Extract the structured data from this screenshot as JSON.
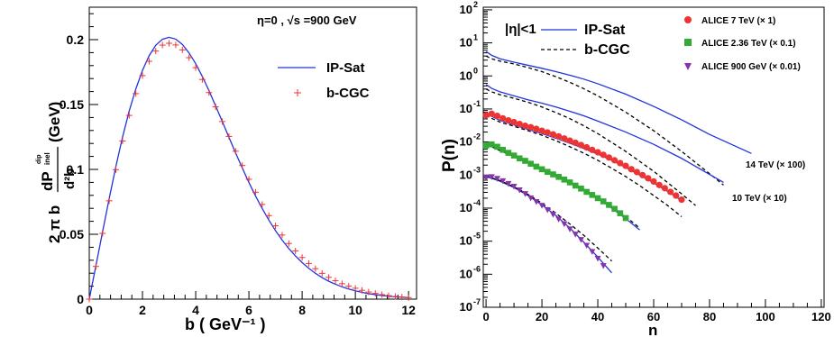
{
  "figure": {
    "left_panel": {
      "header": "η=0 , √s =900 GeV",
      "ylabel_prefix": "2 π b",
      "ylabel_numerator": "dP",
      "ylabel_superscript": "inel",
      "ylabel_superscript2": "dip",
      "ylabel_denominator": "d²b",
      "ylabel_unit": "(GeV)",
      "xlabel": "b ( GeV⁻¹ )",
      "legend": [
        {
          "label": "IP-Sat",
          "style": "line",
          "color": "#2233dd"
        },
        {
          "label": "b-CGC",
          "style": "cross",
          "color": "#ee3333"
        }
      ]
    },
    "right_panel": {
      "header": "|η|<1",
      "xlabel": "n",
      "ylabel": "P(n)",
      "legend_models": [
        {
          "label": "IP-Sat",
          "style": "line",
          "color": "#2233dd"
        },
        {
          "label": "b-CGC",
          "style": "dashed",
          "color": "#000000"
        }
      ],
      "legend_data": [
        {
          "label": "ALICE 7 TeV (× 1)",
          "marker": "circle",
          "color": "#ee3333"
        },
        {
          "label": "ALICE 2.36 TeV (× 0.1)",
          "marker": "square",
          "color": "#33aa33"
        },
        {
          "label": "ALICE 900 GeV (× 0.01)",
          "marker": "triangle-down",
          "color": "#8833aa"
        }
      ],
      "curve_labels": [
        "14 TeV (× 100)",
        "10 TeV (× 10)"
      ]
    }
  },
  "chart_data": [
    {
      "type": "line",
      "xlabel": "b ( GeV⁻¹ )",
      "ylabel": "2 π b dP_inel^dip / d²b (GeV)",
      "xlim": [
        0,
        12.3
      ],
      "ylim": [
        0,
        0.225
      ],
      "xticks": [
        0,
        2,
        4,
        6,
        8,
        10,
        12
      ],
      "yticks": [
        0,
        0.05,
        0.1,
        0.15,
        0.2
      ],
      "grid": false,
      "legend_position": "top-right",
      "series": [
        {
          "name": "IP-Sat",
          "style": "line",
          "color": "#2233dd",
          "x": [
            0,
            0.25,
            0.5,
            0.75,
            1,
            1.25,
            1.5,
            1.75,
            2,
            2.25,
            2.5,
            2.75,
            3,
            3.25,
            3.5,
            3.75,
            4,
            4.25,
            4.5,
            4.75,
            5,
            5.25,
            5.5,
            5.75,
            6,
            6.25,
            6.5,
            6.75,
            7,
            7.25,
            7.5,
            7.75,
            8,
            8.25,
            8.5,
            8.75,
            9,
            9.25,
            9.5,
            9.75,
            10,
            10.5,
            11,
            11.5,
            12
          ],
          "y": [
            0,
            0.0258,
            0.0519,
            0.0776,
            0.1022,
            0.1248,
            0.1449,
            0.162,
            0.1763,
            0.1876,
            0.1957,
            0.2003,
            0.2018,
            0.2004,
            0.1963,
            0.1898,
            0.1815,
            0.1716,
            0.1607,
            0.1489,
            0.1369,
            0.1247,
            0.1127,
            0.1011,
            0.0899,
            0.0795,
            0.0698,
            0.0609,
            0.0528,
            0.0455,
            0.039,
            0.0333,
            0.0282,
            0.0238,
            0.0199,
            0.0166,
            0.0138,
            0.0115,
            0.0095,
            0.0078,
            0.0064,
            0.0042,
            0.0028,
            0.0018,
            0.0012
          ]
        },
        {
          "name": "b-CGC",
          "style": "cross",
          "color": "#ee3333",
          "x": [
            0,
            0.25,
            0.5,
            0.75,
            1,
            1.25,
            1.5,
            1.75,
            2,
            2.25,
            2.5,
            2.75,
            3,
            3.25,
            3.5,
            3.75,
            4,
            4.25,
            4.5,
            4.75,
            5,
            5.25,
            5.5,
            5.75,
            6,
            6.25,
            6.5,
            6.75,
            7,
            7.25,
            7.5,
            7.75,
            8,
            8.25,
            8.5,
            8.75,
            9,
            9.25,
            9.5,
            9.75,
            10,
            10.25,
            10.5,
            10.75,
            11,
            11.25,
            11.5,
            11.75,
            12
          ],
          "y": [
            0,
            0.0252,
            0.0507,
            0.0758,
            0.0998,
            0.1219,
            0.1416,
            0.1584,
            0.1723,
            0.1833,
            0.1912,
            0.1958,
            0.1972,
            0.1959,
            0.1921,
            0.1861,
            0.1784,
            0.1693,
            0.1592,
            0.1482,
            0.1369,
            0.1254,
            0.114,
            0.103,
            0.0924,
            0.0824,
            0.073,
            0.0644,
            0.0565,
            0.0494,
            0.0429,
            0.0372,
            0.0321,
            0.0275,
            0.0235,
            0.0199,
            0.0168,
            0.0142,
            0.0119,
            0.01,
            0.0084,
            0.0068,
            0.0055,
            0.0044,
            0.0035,
            0.0027,
            0.0021,
            0.0016,
            0.0012
          ]
        }
      ]
    },
    {
      "type": "line",
      "xlabel": "n",
      "ylabel": "P(n)",
      "xscale": "linear",
      "yscale": "log",
      "xlim": [
        -1,
        121
      ],
      "ylim": [
        1e-07,
        120
      ],
      "xticks": [
        0,
        20,
        40,
        60,
        80,
        100,
        120
      ],
      "yticks_exp": [
        -7,
        -6,
        -5,
        -4,
        -3,
        -2,
        -1,
        0,
        1,
        2
      ],
      "grid": false,
      "legend_position": "top",
      "series": [
        {
          "name": "IP-Sat",
          "label": "14 TeV (× 100)",
          "style": "line",
          "color": "#2233dd",
          "x": [
            0,
            2,
            5,
            10,
            15,
            20,
            25,
            30,
            35,
            40,
            50,
            60,
            70,
            80,
            95
          ],
          "y": [
            5.5,
            4.2,
            3.3,
            2.6,
            2.1,
            1.7,
            1.35,
            1.05,
            0.8,
            0.58,
            0.28,
            0.12,
            0.047,
            0.017,
            0.0045
          ]
        },
        {
          "name": "b-CGC",
          "label": "14 TeV (× 100)",
          "style": "dashed",
          "color": "#000000",
          "x": [
            0,
            2,
            5,
            10,
            15,
            20,
            25,
            30,
            35,
            40,
            50,
            60,
            70,
            80,
            85
          ],
          "y": [
            4.0,
            3.3,
            2.8,
            2.3,
            1.8,
            1.35,
            0.95,
            0.64,
            0.41,
            0.25,
            0.08,
            0.022,
            0.0052,
            0.0011,
            0.0005
          ]
        },
        {
          "name": "IP-Sat",
          "label": "10 TeV (× 10)",
          "style": "line",
          "color": "#2233dd",
          "x": [
            0,
            2,
            5,
            10,
            15,
            20,
            25,
            30,
            35,
            40,
            50,
            60,
            70,
            85
          ],
          "y": [
            0.55,
            0.42,
            0.33,
            0.25,
            0.19,
            0.15,
            0.115,
            0.085,
            0.062,
            0.043,
            0.02,
            0.0085,
            0.0032,
            0.0006
          ]
        },
        {
          "name": "b-CGC",
          "label": "10 TeV (× 10)",
          "style": "dashed",
          "color": "#000000",
          "x": [
            0,
            2,
            5,
            10,
            15,
            20,
            25,
            30,
            35,
            40,
            50,
            60,
            70,
            75
          ],
          "y": [
            0.4,
            0.33,
            0.27,
            0.21,
            0.16,
            0.115,
            0.078,
            0.051,
            0.031,
            0.018,
            0.0052,
            0.0013,
            0.00027,
            0.00012
          ]
        },
        {
          "name": "IP-Sat",
          "label": "7 TeV",
          "style": "line",
          "color": "#2233dd",
          "x": [
            0,
            2,
            5,
            10,
            15,
            20,
            25,
            30,
            35,
            40,
            45,
            50,
            55,
            60,
            65,
            70
          ],
          "y": [
            0.075,
            0.06,
            0.045,
            0.033,
            0.024,
            0.018,
            0.013,
            0.0092,
            0.0064,
            0.0043,
            0.0028,
            0.0017,
            0.001,
            0.00058,
            0.00032,
            0.00017
          ]
        },
        {
          "name": "b-CGC",
          "label": "7 TeV",
          "style": "dashed",
          "color": "#000000",
          "x": [
            0,
            2,
            5,
            10,
            15,
            20,
            25,
            30,
            35,
            40,
            45,
            50,
            55,
            60,
            65,
            70
          ],
          "y": [
            0.065,
            0.052,
            0.04,
            0.03,
            0.022,
            0.016,
            0.011,
            0.0072,
            0.0046,
            0.0028,
            0.0016,
            0.0009,
            0.00048,
            0.00024,
            0.00012,
            5.5e-05
          ]
        },
        {
          "name": "IP-Sat",
          "label": "2.36 TeV",
          "style": "line",
          "color": "#2233dd",
          "x": [
            0,
            2,
            5,
            10,
            15,
            20,
            25,
            30,
            35,
            40,
            45,
            50,
            55
          ],
          "y": [
            0.0095,
            0.0075,
            0.0058,
            0.0038,
            0.0025,
            0.0016,
            0.001,
            0.00062,
            0.00036,
            0.0002,
            0.0001,
            4.8e-05,
            2.2e-05
          ]
        },
        {
          "name": "b-CGC",
          "label": "2.36 TeV",
          "style": "dashed",
          "color": "#000000",
          "x": [
            0,
            2,
            5,
            10,
            15,
            20,
            25,
            30,
            35,
            40,
            45,
            50,
            55
          ],
          "y": [
            0.009,
            0.0072,
            0.0055,
            0.0036,
            0.0024,
            0.0016,
            0.001,
            0.00062,
            0.00037,
            0.00021,
            0.00011,
            5.5e-05,
            2.5e-05
          ]
        },
        {
          "name": "IP-Sat",
          "label": "900 GeV",
          "style": "line",
          "color": "#2233dd",
          "x": [
            0,
            2,
            5,
            10,
            15,
            20,
            25,
            30,
            35,
            40,
            45
          ],
          "y": [
            0.0009,
            0.0008,
            0.00065,
            0.00042,
            0.00024,
            0.000125,
            6e-05,
            2.5e-05,
            9.3e-06,
            3.3e-06,
            1.1e-06
          ]
        },
        {
          "name": "b-CGC",
          "label": "900 GeV",
          "style": "dashed",
          "color": "#000000",
          "x": [
            0,
            2,
            5,
            10,
            15,
            20,
            25,
            30,
            35,
            40,
            45
          ],
          "y": [
            0.00095,
            0.00083,
            0.00068,
            0.00044,
            0.00026,
            0.00014,
            7e-05,
            3.3e-05,
            1.5e-05,
            6.2e-06,
            2.5e-06
          ]
        },
        {
          "name": "ALICE 7 TeV (× 1)",
          "style": "markers",
          "marker": "circle",
          "color": "#ee3333",
          "x": [
            0,
            2,
            4,
            6,
            8,
            10,
            12,
            14,
            16,
            18,
            20,
            22,
            24,
            26,
            28,
            30,
            32,
            34,
            36,
            38,
            40,
            42,
            44,
            46,
            48,
            50,
            52,
            54,
            56,
            58,
            60,
            62,
            64,
            66,
            68,
            70
          ],
          "y": [
            0.065,
            0.072,
            0.062,
            0.052,
            0.045,
            0.04,
            0.035,
            0.031,
            0.028,
            0.025,
            0.022,
            0.0195,
            0.017,
            0.0148,
            0.0128,
            0.011,
            0.0095,
            0.0081,
            0.0069,
            0.0058,
            0.0049,
            0.0041,
            0.0034,
            0.0028,
            0.0023,
            0.0019,
            0.0015,
            0.00123,
            0.001,
            0.0008,
            0.00064,
            0.0005,
            0.0004,
            0.00031,
            0.00024,
            0.00018
          ]
        },
        {
          "name": "ALICE 2.36 TeV (× 0.1)",
          "style": "markers",
          "marker": "square",
          "color": "#33aa33",
          "x": [
            0,
            2,
            4,
            6,
            8,
            10,
            12,
            14,
            16,
            18,
            20,
            22,
            24,
            26,
            28,
            30,
            32,
            34,
            36,
            38,
            40,
            42,
            44,
            46,
            48,
            50
          ],
          "y": [
            0.0078,
            0.0085,
            0.0072,
            0.0058,
            0.0047,
            0.0039,
            0.0032,
            0.0027,
            0.0022,
            0.0018,
            0.0015,
            0.00125,
            0.00105,
            0.00088,
            0.00073,
            0.0006,
            0.00048,
            0.00039,
            0.00031,
            0.00025,
            0.0002,
            0.00016,
            0.000125,
            9.5e-05,
            7e-05,
            5e-05
          ]
        },
        {
          "name": "ALICE 900 GeV (× 0.01)",
          "style": "markers",
          "marker": "triangle-down",
          "color": "#8833aa",
          "x": [
            0,
            2,
            4,
            6,
            8,
            10,
            12,
            14,
            16,
            18,
            20,
            22,
            24,
            26,
            28,
            30,
            32,
            34,
            36,
            38,
            40,
            42
          ],
          "y": [
            0.00085,
            0.00088,
            0.00078,
            0.00066,
            0.00055,
            0.00045,
            0.00035,
            0.00027,
            0.0002,
            0.000155,
            0.00012,
            8.8e-05,
            6.4e-05,
            4.6e-05,
            3.3e-05,
            2.3e-05,
            1.6e-05,
            1.1e-05,
            7.4e-06,
            4.8e-06,
            3e-06,
            1.8e-06
          ]
        }
      ]
    }
  ]
}
